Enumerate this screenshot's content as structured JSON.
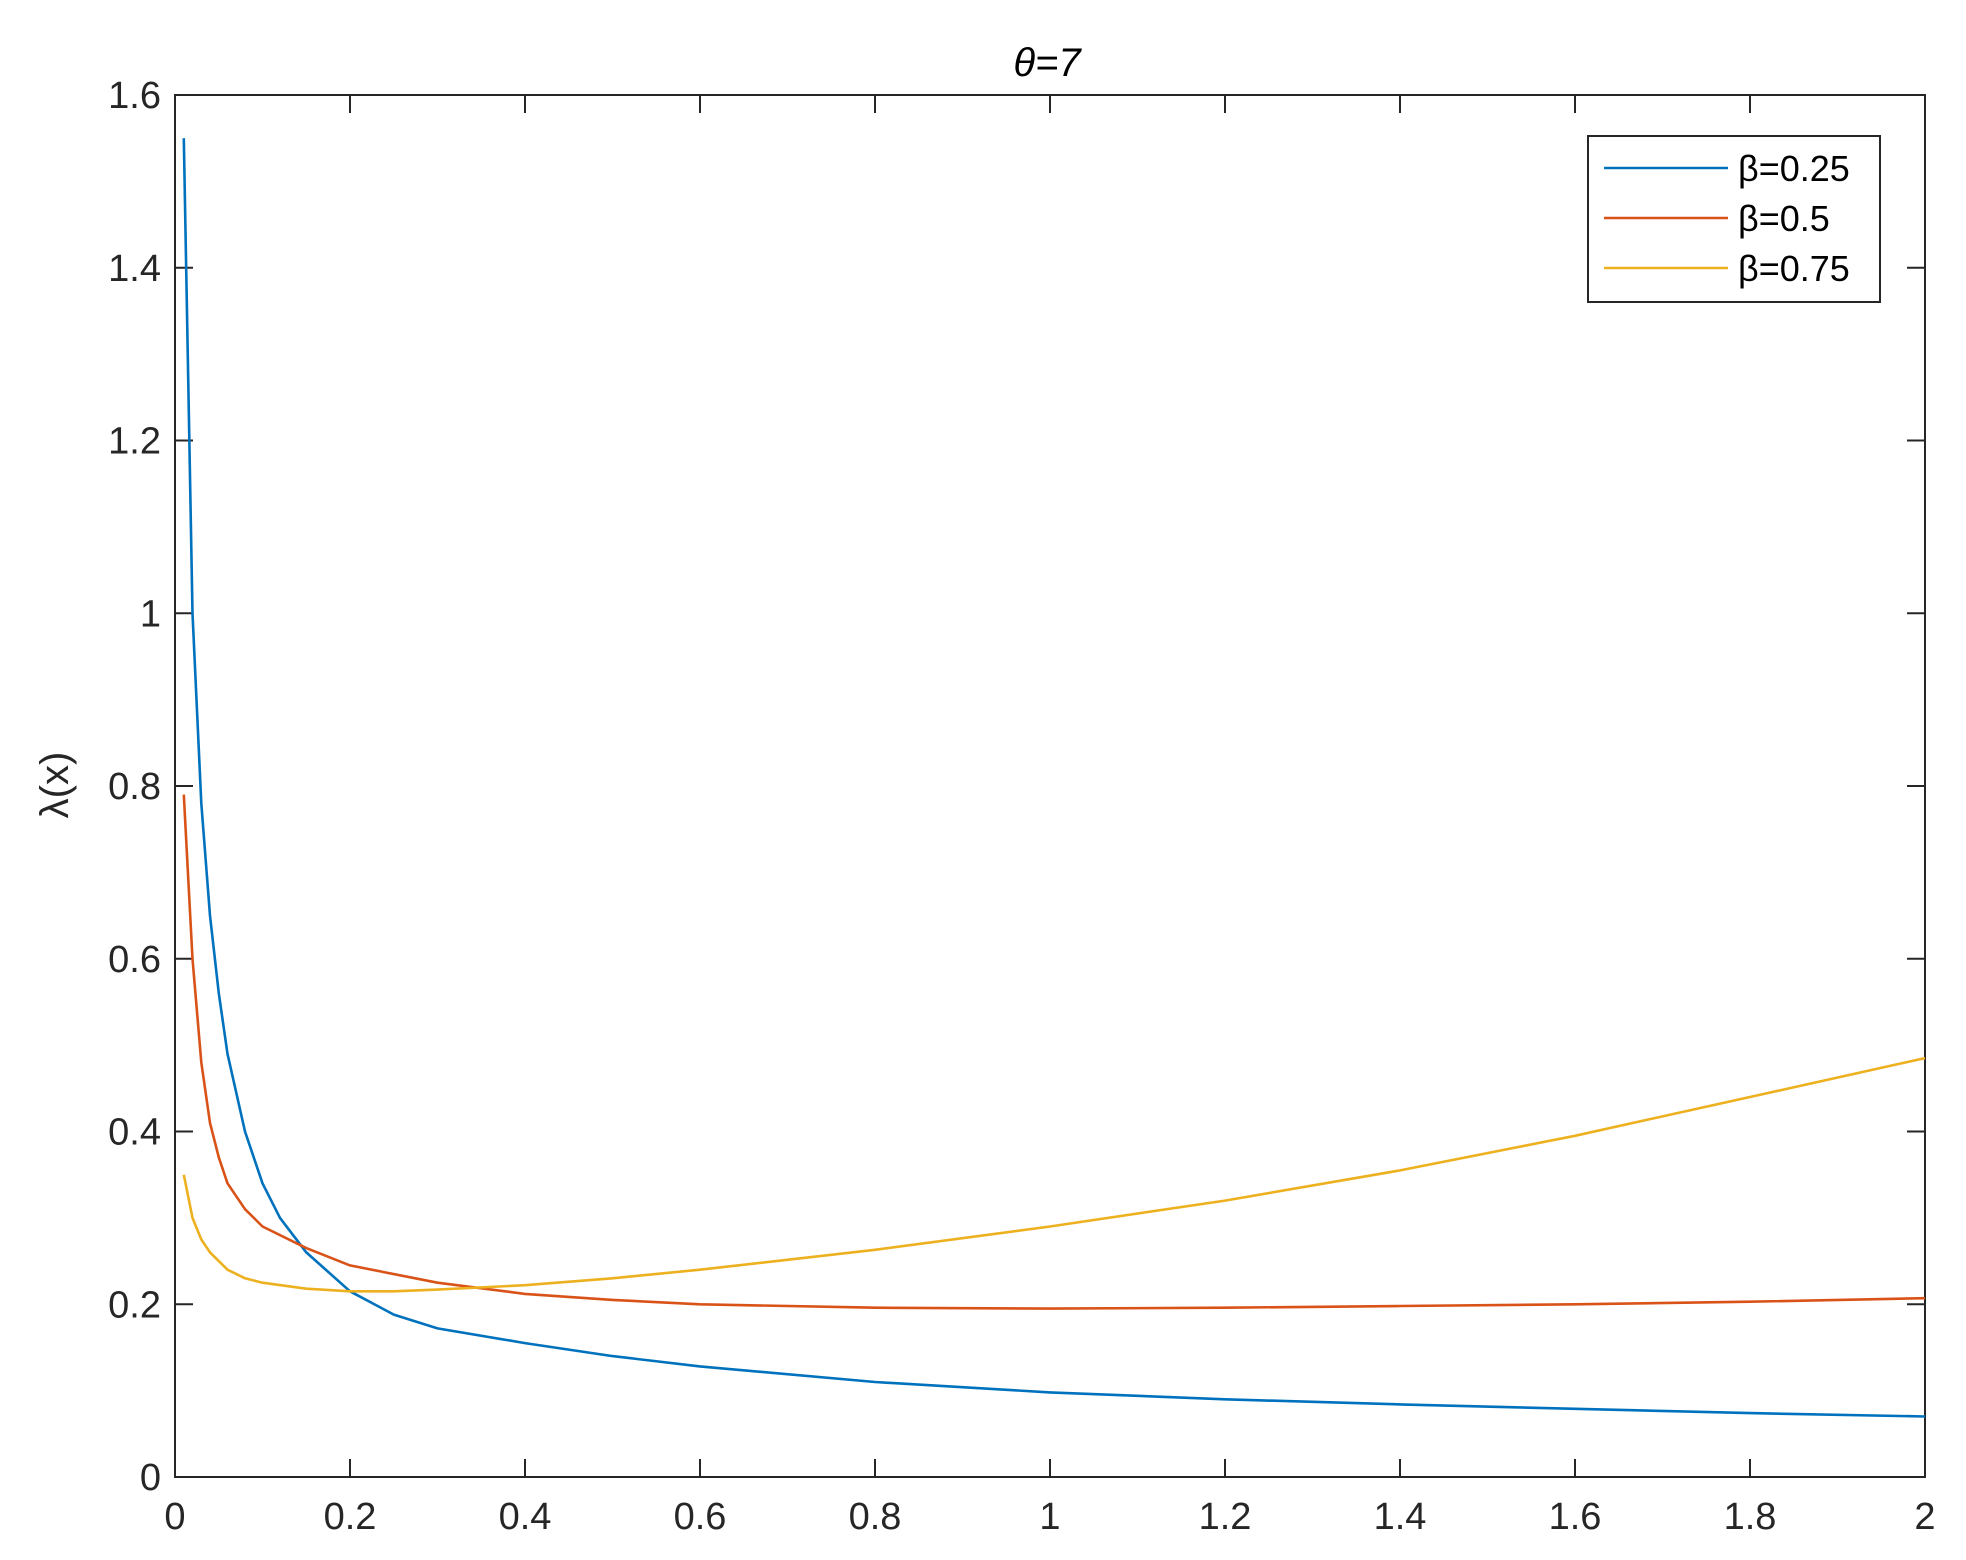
{
  "chart_data": {
    "type": "line",
    "title": "θ=7",
    "xlabel": "",
    "ylabel": "λ(x)",
    "xlim": [
      0,
      2
    ],
    "ylim": [
      0,
      1.6
    ],
    "xticks": [
      0,
      0.2,
      0.4,
      0.6,
      0.8,
      1,
      1.2,
      1.4,
      1.6,
      1.8,
      2
    ],
    "xtick_labels": [
      "0",
      "0.2",
      "0.4",
      "0.6",
      "0.8",
      "1",
      "1.2",
      "1.4",
      "1.6",
      "1.8",
      "2"
    ],
    "yticks": [
      0,
      0.2,
      0.4,
      0.6,
      0.8,
      1,
      1.2,
      1.4,
      1.6
    ],
    "ytick_labels": [
      "0",
      "0.2",
      "0.4",
      "0.6",
      "0.8",
      "1",
      "1.2",
      "1.4",
      "1.6"
    ],
    "grid": false,
    "legend_position": "top-right",
    "series": [
      {
        "name": "β=0.25",
        "color": "#0072BD",
        "x": [
          0.01,
          0.02,
          0.03,
          0.04,
          0.05,
          0.06,
          0.08,
          0.1,
          0.12,
          0.15,
          0.2,
          0.25,
          0.3,
          0.4,
          0.5,
          0.6,
          0.8,
          1.0,
          1.2,
          1.4,
          1.6,
          1.8,
          2.0
        ],
        "y": [
          1.55,
          1.0,
          0.78,
          0.65,
          0.56,
          0.49,
          0.4,
          0.34,
          0.3,
          0.26,
          0.215,
          0.188,
          0.172,
          0.155,
          0.14,
          0.128,
          0.11,
          0.098,
          0.09,
          0.084,
          0.079,
          0.074,
          0.07
        ]
      },
      {
        "name": "β=0.5",
        "color": "#D95319",
        "x": [
          0.01,
          0.02,
          0.03,
          0.04,
          0.05,
          0.06,
          0.08,
          0.1,
          0.15,
          0.2,
          0.3,
          0.4,
          0.5,
          0.6,
          0.8,
          1.0,
          1.2,
          1.4,
          1.6,
          1.8,
          2.0
        ],
        "y": [
          0.79,
          0.6,
          0.48,
          0.41,
          0.37,
          0.34,
          0.31,
          0.29,
          0.265,
          0.245,
          0.225,
          0.212,
          0.205,
          0.2,
          0.196,
          0.195,
          0.196,
          0.198,
          0.2,
          0.203,
          0.207
        ]
      },
      {
        "name": "β=0.75",
        "color": "#EDB120",
        "x": [
          0.01,
          0.02,
          0.03,
          0.04,
          0.05,
          0.06,
          0.08,
          0.1,
          0.15,
          0.2,
          0.25,
          0.3,
          0.4,
          0.5,
          0.6,
          0.8,
          1.0,
          1.2,
          1.4,
          1.6,
          1.8,
          2.0
        ],
        "y": [
          0.35,
          0.3,
          0.275,
          0.26,
          0.25,
          0.24,
          0.23,
          0.225,
          0.218,
          0.215,
          0.215,
          0.217,
          0.222,
          0.23,
          0.24,
          0.263,
          0.29,
          0.32,
          0.355,
          0.395,
          0.44,
          0.485
        ]
      }
    ]
  }
}
